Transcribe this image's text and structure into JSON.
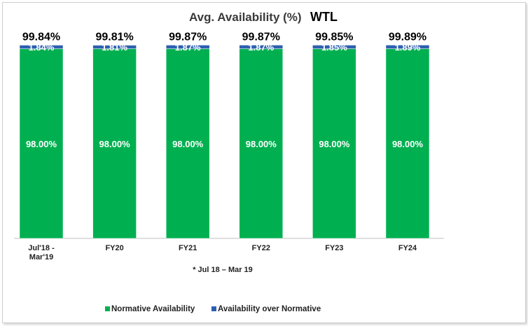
{
  "chart_data": {
    "type": "bar",
    "stacked": true,
    "title": "Avg. Availability (%)",
    "title_tag": "WTL",
    "categories": [
      [
        "Jul'18 -",
        "Mar'19"
      ],
      [
        "FY20"
      ],
      [
        "FY21"
      ],
      [
        "FY22"
      ],
      [
        "FY23"
      ],
      [
        "FY24"
      ]
    ],
    "series": [
      {
        "name": "Normative Availability",
        "color": "#00b050",
        "values": [
          98.0,
          98.0,
          98.0,
          98.0,
          98.0,
          98.0
        ],
        "labels": [
          "98.00%",
          "98.00%",
          "98.00%",
          "98.00%",
          "98.00%",
          "98.00%"
        ]
      },
      {
        "name": "Availability over Normative",
        "color": "#2e5fb0",
        "values": [
          1.84,
          1.81,
          1.87,
          1.87,
          1.85,
          1.89
        ],
        "labels": [
          "1.84%",
          "1.81%",
          "1.87%",
          "1.87%",
          "1.85%",
          "1.89%"
        ]
      }
    ],
    "totals": [
      "99.84%",
      "99.81%",
      "99.87%",
      "99.87%",
      "99.85%",
      "99.89%"
    ],
    "ylim": [
      0,
      100
    ],
    "grid": false,
    "legend_position": "bottom",
    "note": "* Jul 18 – Mar 19"
  }
}
